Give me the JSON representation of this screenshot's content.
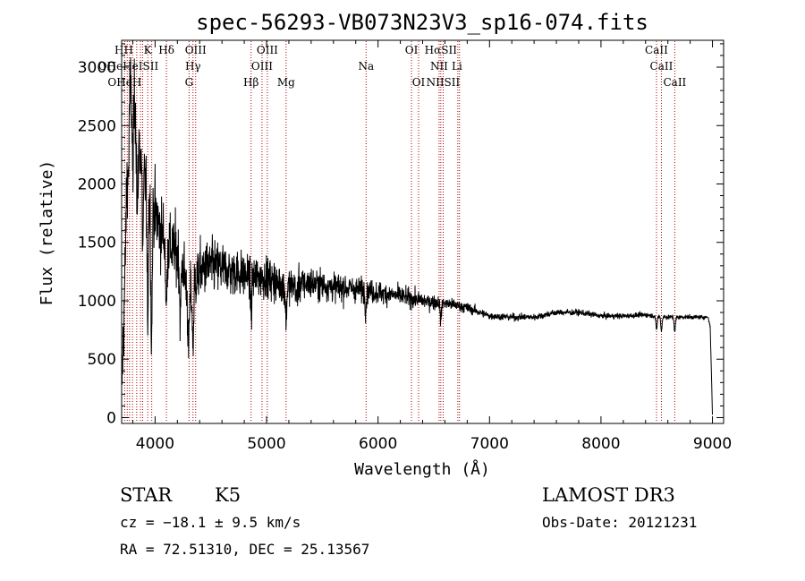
{
  "chart_data": {
    "type": "line",
    "title": "spec-56293-VB073N23V3_sp16-074.fits",
    "xlabel": "Wavelength (Å)",
    "ylabel": "Flux (relative)",
    "xlim": [
      3700,
      9100
    ],
    "ylim": [
      -50,
      3230
    ],
    "xticks": [
      4000,
      5000,
      6000,
      7000,
      8000,
      9000
    ],
    "yticks": [
      0,
      500,
      1000,
      1500,
      2000,
      2500,
      3000
    ],
    "series": [
      {
        "name": "flux",
        "anchors": [
          [
            3700,
            200
          ],
          [
            3730,
            1200
          ],
          [
            3760,
            2700
          ],
          [
            3800,
            2900
          ],
          [
            3850,
            2400
          ],
          [
            3900,
            2100
          ],
          [
            3950,
            1900
          ],
          [
            4000,
            1750
          ],
          [
            4050,
            1600
          ],
          [
            4100,
            1500
          ],
          [
            4150,
            1450
          ],
          [
            4200,
            1400
          ],
          [
            4250,
            1300
          ],
          [
            4300,
            1000
          ],
          [
            4350,
            1150
          ],
          [
            4400,
            1250
          ],
          [
            4500,
            1300
          ],
          [
            4600,
            1280
          ],
          [
            4700,
            1250
          ],
          [
            4800,
            1220
          ],
          [
            4900,
            1200
          ],
          [
            5000,
            1200
          ],
          [
            5100,
            1150
          ],
          [
            5200,
            1130
          ],
          [
            5400,
            1150
          ],
          [
            5600,
            1120
          ],
          [
            5800,
            1100
          ],
          [
            6000,
            1070
          ],
          [
            6200,
            1040
          ],
          [
            6400,
            1000
          ],
          [
            6600,
            980
          ],
          [
            6800,
            940
          ],
          [
            7000,
            870
          ],
          [
            7200,
            860
          ],
          [
            7400,
            860
          ],
          [
            7600,
            900
          ],
          [
            7800,
            900
          ],
          [
            8000,
            870
          ],
          [
            8200,
            870
          ],
          [
            8400,
            880
          ],
          [
            8600,
            860
          ],
          [
            8800,
            860
          ],
          [
            8960,
            860
          ],
          [
            8980,
            780
          ],
          [
            9000,
            30
          ]
        ],
        "dips": [
          [
            3760,
            600
          ],
          [
            3800,
            800
          ],
          [
            3840,
            800
          ],
          [
            3890,
            700
          ],
          [
            3933,
            1100
          ],
          [
            3968,
            1200
          ],
          [
            4101,
            600
          ],
          [
            4226,
            500
          ],
          [
            4300,
            450
          ],
          [
            4340,
            500
          ],
          [
            4861,
            300
          ],
          [
            5175,
            300
          ],
          [
            5270,
            150
          ],
          [
            5890,
            150
          ],
          [
            6563,
            150
          ],
          [
            8498,
            120
          ],
          [
            8542,
            120
          ],
          [
            8662,
            120
          ]
        ],
        "noise_sigma": [
          [
            3700,
            250
          ],
          [
            4500,
            160
          ],
          [
            5500,
            90
          ],
          [
            6500,
            45
          ],
          [
            7000,
            22
          ],
          [
            9000,
            12
          ]
        ]
      }
    ],
    "lines": [
      {
        "label": "HH",
        "x": 3720,
        "row": 0
      },
      {
        "label": "K",
        "x": 3934,
        "row": 0
      },
      {
        "label": "Hδ",
        "x": 4102,
        "row": 0
      },
      {
        "label": "OIII",
        "x": 4364,
        "row": 0
      },
      {
        "label": "OIII",
        "x": 5007,
        "row": 0
      },
      {
        "label": "OI",
        "x": 6300,
        "row": 0
      },
      {
        "label": "HαSII",
        "x": 6563,
        "row": 0
      },
      {
        "label": "CaII",
        "x": 8498,
        "row": 0
      },
      {
        "label": "OHeHeISII",
        "x": 3760,
        "row": 1
      },
      {
        "label": "Hγ",
        "x": 4340,
        "row": 1
      },
      {
        "label": "OIII",
        "x": 4959,
        "row": 1
      },
      {
        "label": "Na",
        "x": 5893,
        "row": 1
      },
      {
        "label": "NII",
        "x": 6548,
        "row": 1
      },
      {
        "label": "Li",
        "x": 6708,
        "row": 1
      },
      {
        "label": "CaII",
        "x": 8542,
        "row": 1
      },
      {
        "label": "OHeH",
        "x": 3727,
        "row": 2
      },
      {
        "label": "G",
        "x": 4305,
        "row": 2
      },
      {
        "label": "Hβ",
        "x": 4861,
        "row": 2
      },
      {
        "label": "Mg",
        "x": 5175,
        "row": 2
      },
      {
        "label": "OI",
        "x": 6364,
        "row": 2
      },
      {
        "label": "NIISII",
        "x": 6584,
        "row": 2
      },
      {
        "label": "CaII",
        "x": 8662,
        "row": 2
      }
    ],
    "line_positions": [
      3727,
      3750,
      3771,
      3798,
      3835,
      3869,
      3889,
      3934,
      3970,
      4102,
      4305,
      4340,
      4364,
      4861,
      4959,
      5007,
      5175,
      5893,
      6300,
      6364,
      6548,
      6563,
      6584,
      6716,
      6731,
      8498,
      8542,
      8662
    ]
  },
  "info": {
    "class": "STAR",
    "subclass": "K5",
    "survey": "LAMOST DR3",
    "cz": "cz = −18.1 ± 9.5 km/s",
    "obs_date": "Obs-Date: 20121231",
    "radec": "RA =  72.51310, DEC =  25.13567"
  }
}
